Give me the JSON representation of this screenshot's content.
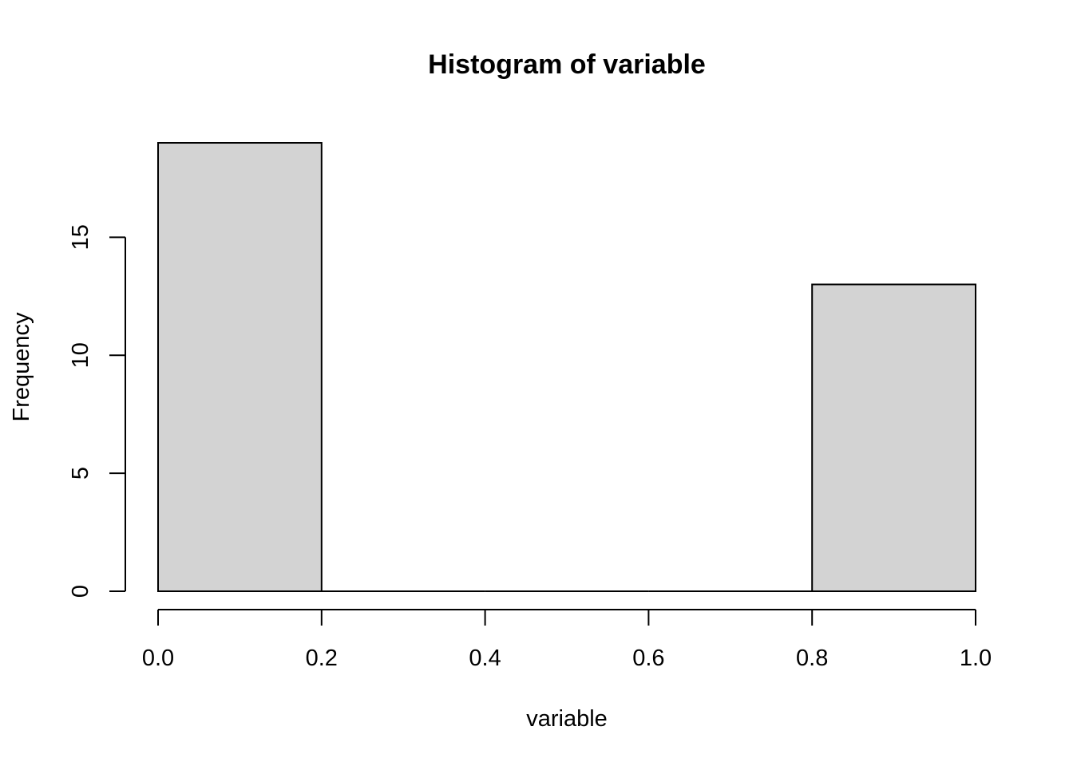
{
  "chart_data": {
    "type": "bar",
    "title": "Histogram of variable",
    "xlabel": "variable",
    "ylabel": "Frequency",
    "bins": [
      {
        "start": 0.0,
        "end": 0.2,
        "count": 19
      },
      {
        "start": 0.2,
        "end": 0.4,
        "count": 0
      },
      {
        "start": 0.4,
        "end": 0.6,
        "count": 0
      },
      {
        "start": 0.6,
        "end": 0.8,
        "count": 0
      },
      {
        "start": 0.8,
        "end": 1.0,
        "count": 13
      }
    ],
    "xlim": [
      0,
      1
    ],
    "ylim": [
      0,
      19
    ],
    "x_ticks": [
      "0.0",
      "0.2",
      "0.4",
      "0.6",
      "0.8",
      "1.0"
    ],
    "y_ticks": [
      "0",
      "5",
      "10",
      "15"
    ],
    "bar_color": "#d3d3d3",
    "grid": false,
    "legend": "none"
  }
}
